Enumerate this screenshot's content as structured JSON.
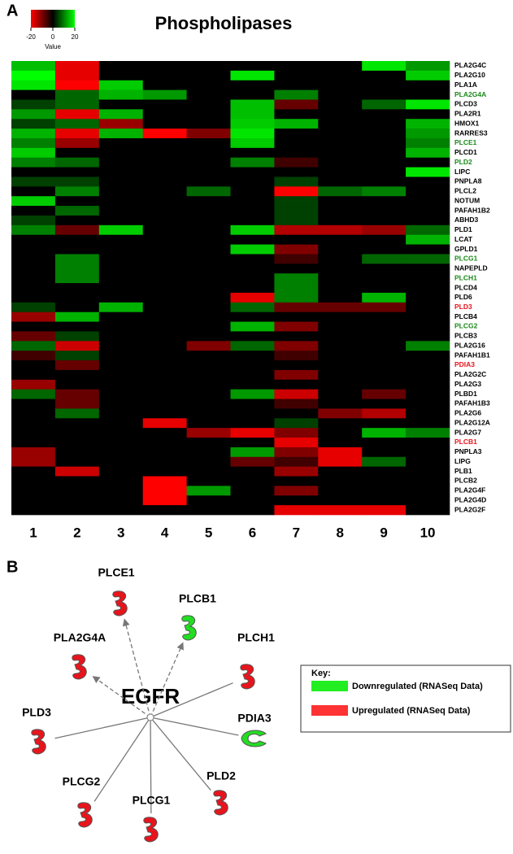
{
  "panels": {
    "a": "A",
    "b": "B"
  },
  "chart_data": {
    "type": "heatmap",
    "title": "Phospholipases",
    "columns": [
      "1",
      "2",
      "3",
      "4",
      "5",
      "6",
      "7",
      "8",
      "9",
      "10"
    ],
    "rows": [
      "PLA2G4C",
      "PLA2G10",
      "PLA1A",
      "PLA2G4A",
      "PLCD3",
      "PLA2R1",
      "HMOX1",
      "RARRES3",
      "PLCE1",
      "PLCD1",
      "PLD2",
      "LIPC",
      "PNPLA8",
      "PLCL2",
      "NOTUM",
      "PAFAH1B2",
      "ABHD3",
      "PLD1",
      "LCAT",
      "GPLD1",
      "PLCG1",
      "NAPEPLD",
      "PLCH1",
      "PLCD4",
      "PLD6",
      "PLD3",
      "PLCB4",
      "PLCG2",
      "PLCB3",
      "PLA2G16",
      "PAFAH1B1",
      "PDIA3",
      "PLA2G2C",
      "PLA2G3",
      "PLBD1",
      "PAFAH1B3",
      "PLA2G6",
      "PLA2G12A",
      "PLA2G7",
      "PLCB1",
      "PNPLA3",
      "LIPG",
      "PLB1",
      "PLCB2",
      "PLA2G4F",
      "PLA2G4D",
      "PLA2G2F"
    ],
    "row_label_colors": [
      "#000000",
      "#000000",
      "#000000",
      "#1a8a1a",
      "#000000",
      "#000000",
      "#000000",
      "#000000",
      "#1a8a1a",
      "#000000",
      "#1a8a1a",
      "#000000",
      "#000000",
      "#000000",
      "#000000",
      "#000000",
      "#000000",
      "#000000",
      "#000000",
      "#000000",
      "#1a8a1a",
      "#000000",
      "#1a8a1a",
      "#000000",
      "#000000",
      "#e8141c",
      "#000000",
      "#1a8a1a",
      "#000000",
      "#000000",
      "#000000",
      "#e8141c",
      "#000000",
      "#000000",
      "#000000",
      "#000000",
      "#000000",
      "#000000",
      "#000000",
      "#e8141c",
      "#000000",
      "#000000",
      "#000000",
      "#000000",
      "#000000",
      "#000000",
      "#000000"
    ],
    "values": [
      [
        15,
        -18,
        0,
        0,
        0,
        0,
        0,
        0,
        18,
        12
      ],
      [
        20,
        -18,
        0,
        0,
        0,
        18,
        0,
        0,
        0,
        16
      ],
      [
        18,
        -20,
        16,
        0,
        0,
        0,
        0,
        0,
        0,
        0
      ],
      [
        0,
        8,
        14,
        12,
        0,
        0,
        10,
        0,
        0,
        0
      ],
      [
        5,
        8,
        0,
        0,
        0,
        15,
        -8,
        0,
        8,
        18
      ],
      [
        12,
        -18,
        14,
        0,
        0,
        15,
        0,
        0,
        0,
        0
      ],
      [
        5,
        8,
        -12,
        0,
        0,
        16,
        14,
        0,
        0,
        14
      ],
      [
        14,
        -18,
        14,
        -20,
        -10,
        18,
        0,
        0,
        0,
        12
      ],
      [
        10,
        -12,
        0,
        0,
        0,
        16,
        0,
        0,
        0,
        10
      ],
      [
        16,
        0,
        0,
        0,
        0,
        0,
        0,
        0,
        0,
        14
      ],
      [
        10,
        8,
        0,
        0,
        0,
        10,
        -5,
        0,
        0,
        0
      ],
      [
        0,
        0,
        0,
        0,
        0,
        0,
        0,
        0,
        0,
        18
      ],
      [
        5,
        5,
        0,
        0,
        0,
        0,
        5,
        0,
        0,
        0
      ],
      [
        0,
        10,
        0,
        0,
        8,
        0,
        -20,
        8,
        10,
        0
      ],
      [
        16,
        0,
        0,
        0,
        0,
        0,
        5,
        0,
        0,
        0
      ],
      [
        0,
        8,
        0,
        0,
        0,
        0,
        5,
        0,
        0,
        0
      ],
      [
        5,
        0,
        0,
        0,
        0,
        0,
        5,
        0,
        0,
        0
      ],
      [
        10,
        -8,
        16,
        0,
        0,
        16,
        -14,
        -14,
        -12,
        8
      ],
      [
        0,
        0,
        0,
        0,
        0,
        0,
        0,
        0,
        0,
        14
      ],
      [
        0,
        0,
        0,
        0,
        0,
        16,
        -10,
        0,
        0,
        0
      ],
      [
        0,
        10,
        0,
        0,
        0,
        0,
        -5,
        0,
        8,
        8
      ],
      [
        0,
        10,
        0,
        0,
        0,
        0,
        0,
        0,
        0,
        0
      ],
      [
        0,
        10,
        0,
        0,
        0,
        0,
        10,
        0,
        0,
        0
      ],
      [
        0,
        0,
        0,
        0,
        0,
        0,
        10,
        0,
        0,
        0
      ],
      [
        0,
        0,
        0,
        0,
        0,
        -18,
        10,
        0,
        14,
        0
      ],
      [
        5,
        0,
        14,
        0,
        0,
        8,
        -8,
        -8,
        -8,
        0
      ],
      [
        -12,
        14,
        0,
        0,
        0,
        0,
        0,
        0,
        0,
        0
      ],
      [
        0,
        0,
        0,
        0,
        0,
        14,
        -10,
        0,
        0,
        0
      ],
      [
        -8,
        5,
        0,
        0,
        0,
        0,
        0,
        0,
        0,
        0
      ],
      [
        8,
        -16,
        0,
        0,
        -10,
        8,
        -10,
        0,
        0,
        10
      ],
      [
        -5,
        5,
        0,
        0,
        0,
        0,
        -5,
        0,
        0,
        0
      ],
      [
        0,
        -8,
        0,
        0,
        0,
        0,
        0,
        0,
        0,
        0
      ],
      [
        0,
        0,
        0,
        0,
        0,
        0,
        -10,
        0,
        0,
        0
      ],
      [
        -12,
        0,
        0,
        0,
        0,
        0,
        0,
        0,
        0,
        0
      ],
      [
        8,
        -8,
        0,
        0,
        0,
        12,
        -16,
        0,
        -8,
        0
      ],
      [
        0,
        -8,
        0,
        0,
        0,
        0,
        -5,
        0,
        0,
        0
      ],
      [
        0,
        8,
        0,
        0,
        0,
        0,
        0,
        -10,
        -14,
        0
      ],
      [
        0,
        0,
        0,
        -18,
        0,
        0,
        5,
        0,
        0,
        0
      ],
      [
        0,
        0,
        0,
        0,
        -12,
        -18,
        -10,
        0,
        14,
        10
      ],
      [
        0,
        0,
        0,
        0,
        0,
        0,
        -18,
        0,
        0,
        0
      ],
      [
        -12,
        0,
        0,
        0,
        0,
        12,
        -10,
        -18,
        0,
        0
      ],
      [
        -12,
        0,
        0,
        0,
        0,
        -8,
        -5,
        -18,
        8,
        0
      ],
      [
        0,
        -16,
        0,
        0,
        0,
        0,
        -12,
        0,
        0,
        0
      ],
      [
        0,
        0,
        0,
        -20,
        0,
        0,
        0,
        0,
        0,
        0
      ],
      [
        0,
        0,
        0,
        -20,
        12,
        0,
        -10,
        0,
        0,
        0
      ],
      [
        0,
        0,
        0,
        -20,
        0,
        0,
        0,
        0,
        0,
        0
      ],
      [
        0,
        0,
        0,
        0,
        0,
        0,
        -18,
        -18,
        -18,
        0
      ]
    ],
    "colorscale": {
      "low": "#ff0000",
      "mid": "#000000",
      "high": "#00ff00"
    },
    "zlim": [
      -20,
      20
    ],
    "colorbar_ticks": [
      -20,
      0,
      20
    ],
    "colorbar_label": "Value"
  },
  "network": {
    "center": "EGFR",
    "nodes": [
      {
        "label": "PLCE1",
        "color": "#e8141c",
        "edge": "dashed"
      },
      {
        "label": "PLCB1",
        "color": "#22dd22",
        "edge": "dashed"
      },
      {
        "label": "PLCH1",
        "color": "#e8141c",
        "edge": "solid"
      },
      {
        "label": "PLA2G4A",
        "color": "#e8141c",
        "edge": "dashed"
      },
      {
        "label": "PDIA3",
        "color": "#22dd22",
        "edge": "solid"
      },
      {
        "label": "PLD3",
        "color": "#e8141c",
        "edge": "solid"
      },
      {
        "label": "PLCG2",
        "color": "#e8141c",
        "edge": "solid"
      },
      {
        "label": "PLCG1",
        "color": "#e8141c",
        "edge": "solid"
      },
      {
        "label": "PLD2",
        "color": "#e8141c",
        "edge": "solid"
      }
    ],
    "key": {
      "title": "Key:",
      "items": [
        {
          "label": "Downregulated (RNASeq Data)",
          "color": "#22ee22"
        },
        {
          "label": "Upregulated (RNASeq Data)",
          "color": "#ff3333"
        }
      ]
    }
  }
}
